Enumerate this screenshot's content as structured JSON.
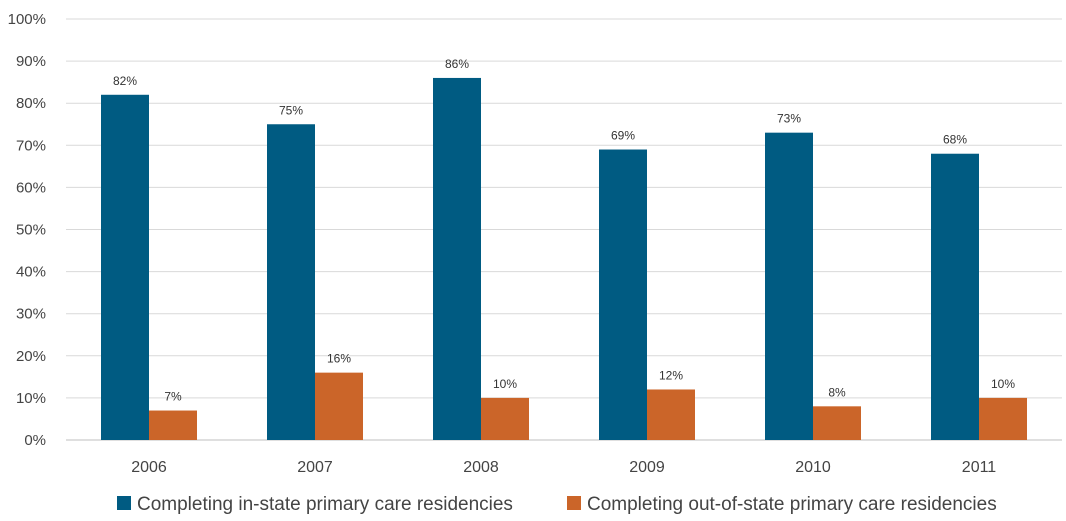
{
  "chart_data": {
    "type": "bar",
    "title": "",
    "xlabel": "",
    "ylabel": "",
    "ylim": [
      0,
      100
    ],
    "yticks": [
      "0%",
      "10%",
      "20%",
      "30%",
      "40%",
      "50%",
      "60%",
      "70%",
      "80%",
      "90%",
      "100%"
    ],
    "grid": true,
    "legend_position": "bottom",
    "categories": [
      "2006",
      "2007",
      "2008",
      "2009",
      "2010",
      "2011"
    ],
    "series": [
      {
        "name": "Completing in-state primary care residencies",
        "color": "#005b82",
        "values": [
          82,
          75,
          86,
          69,
          73,
          68
        ],
        "labels": [
          "82%",
          "75%",
          "86%",
          "69%",
          "73%",
          "68%"
        ]
      },
      {
        "name": "Completing out-of-state primary care residencies",
        "color": "#cb6529",
        "values": [
          7,
          16,
          10,
          12,
          8,
          10
        ],
        "labels": [
          "7%",
          "16%",
          "10%",
          "12%",
          "8%",
          "10%"
        ]
      }
    ]
  }
}
